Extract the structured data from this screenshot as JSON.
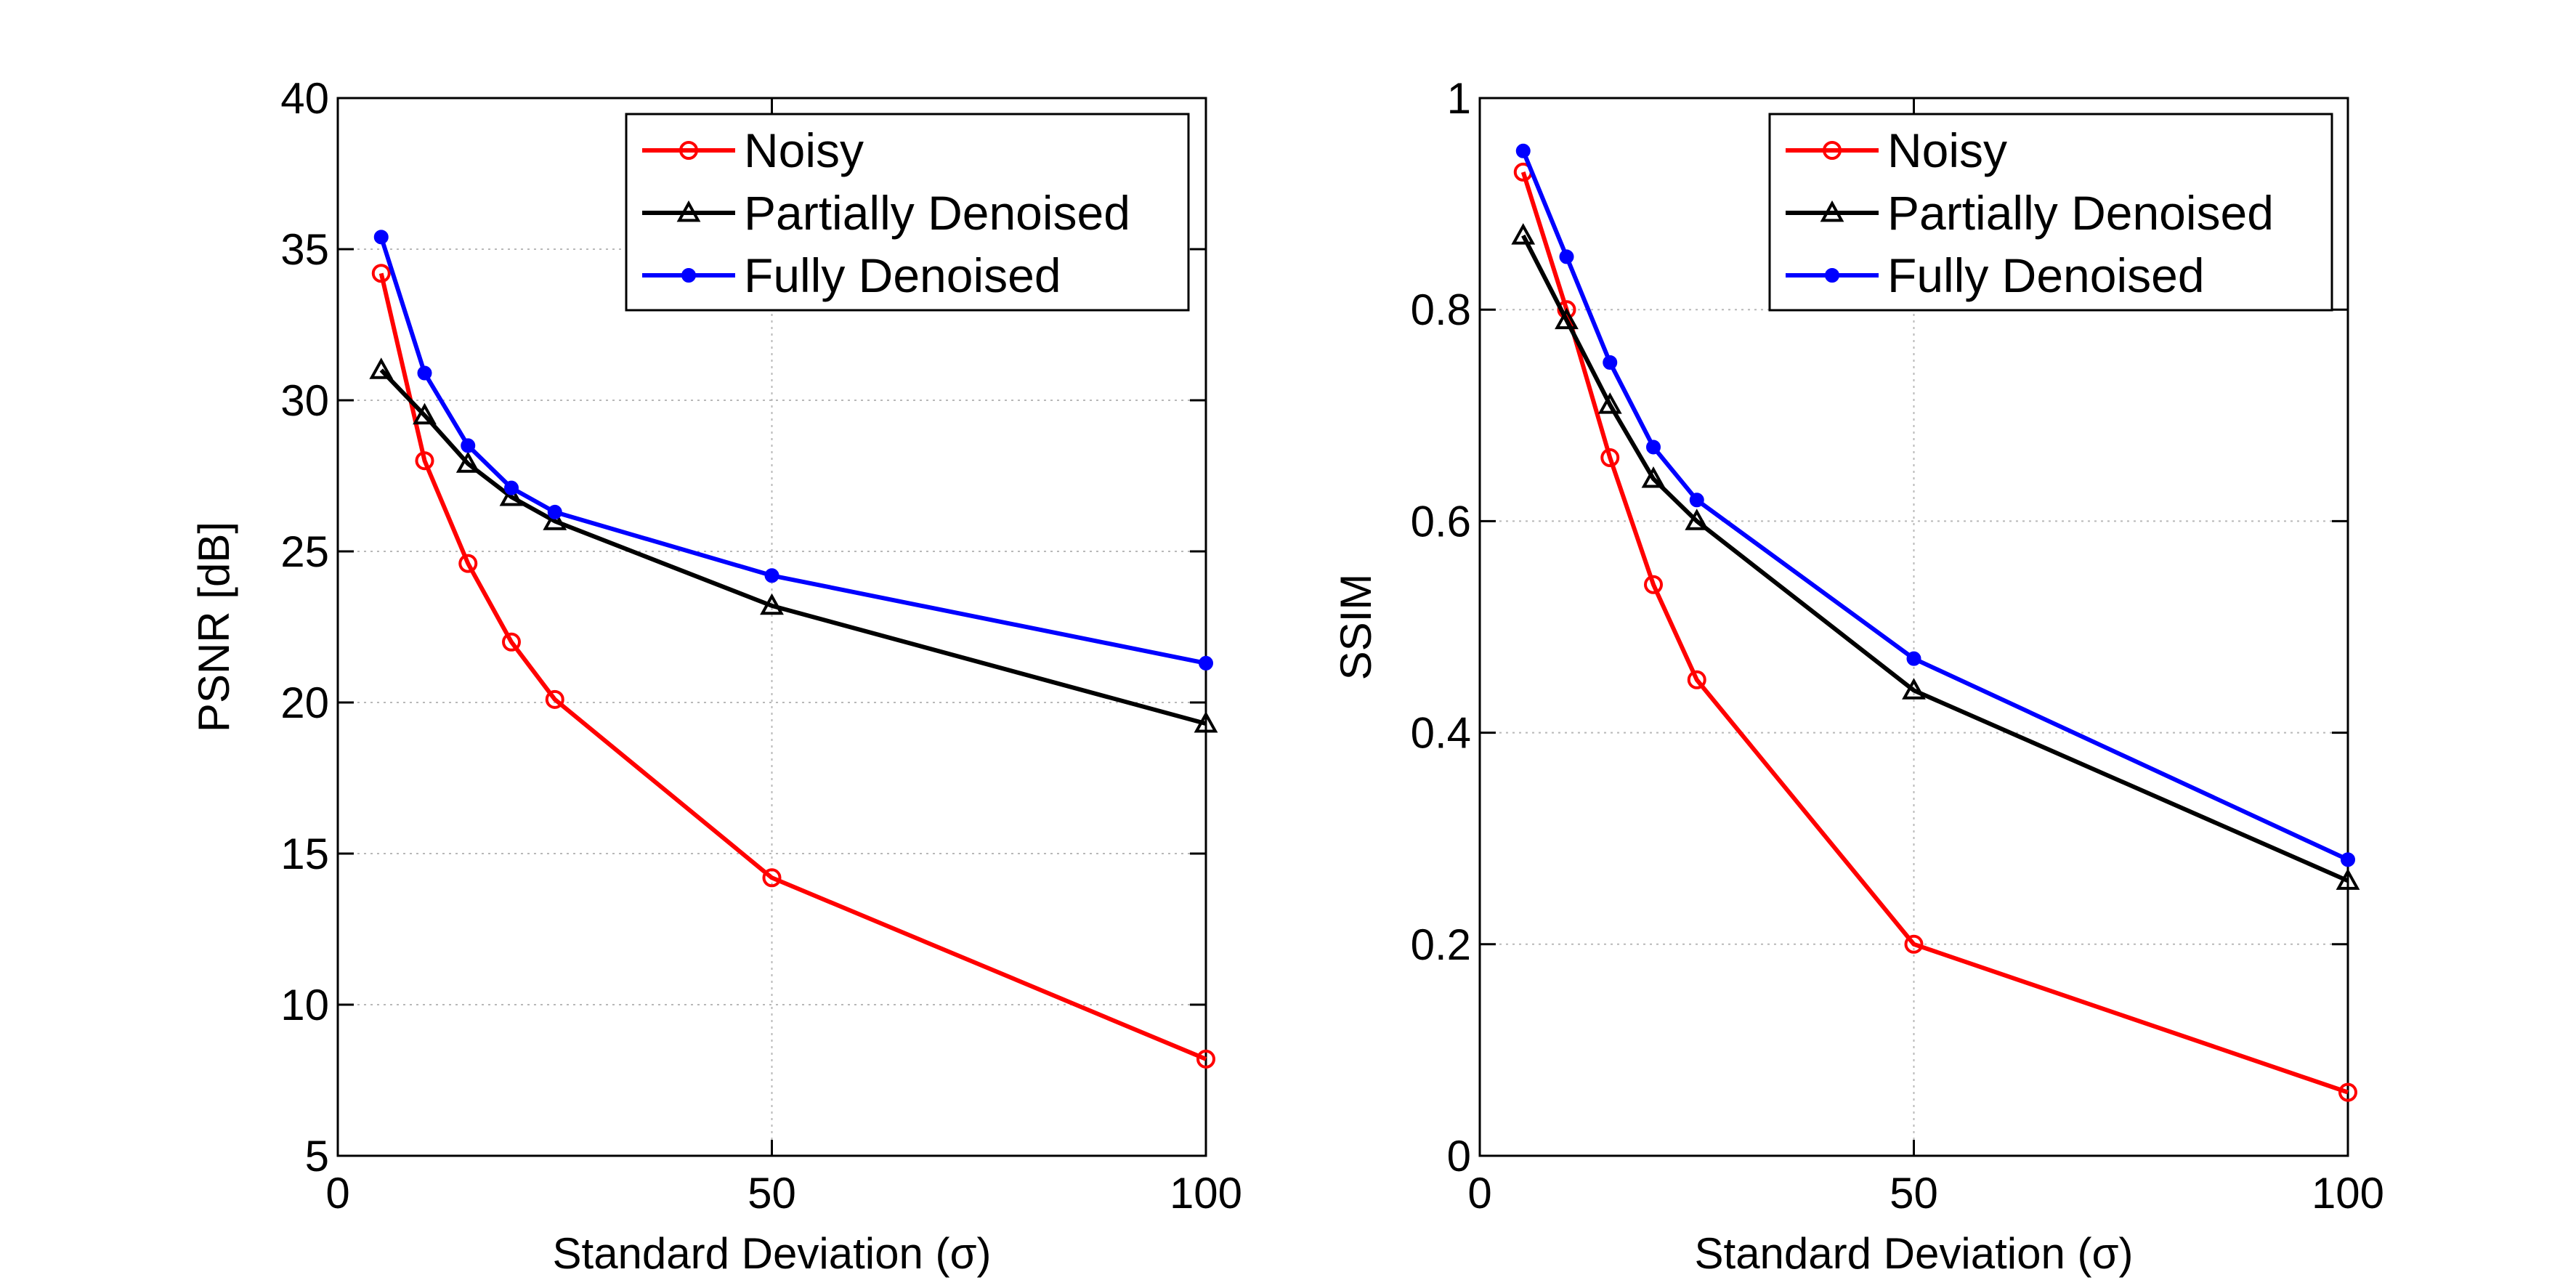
{
  "chart_data": [
    {
      "type": "line",
      "title": "",
      "xlabel": "Standard Deviation (σ)",
      "ylabel": "PSNR [dB]",
      "xlim": [
        0,
        100
      ],
      "ylim": [
        5,
        40
      ],
      "xticks": [
        0,
        50,
        100
      ],
      "xtick_labels": [
        "0",
        "50",
        "100"
      ],
      "yticks": [
        5,
        10,
        15,
        20,
        25,
        30,
        35,
        40
      ],
      "ytick_labels": [
        "5",
        "10",
        "15",
        "20",
        "25",
        "30",
        "35",
        "40"
      ],
      "grid": true,
      "legend_position": "top-right",
      "x": [
        5,
        10,
        15,
        20,
        25,
        50,
        100
      ],
      "series": [
        {
          "name": "Noisy",
          "color": "#ff0000",
          "marker": "circle",
          "values": [
            34.2,
            28.0,
            24.6,
            22.0,
            20.1,
            14.2,
            8.2
          ]
        },
        {
          "name": "Partially Denoised",
          "color": "#000000",
          "marker": "triangle",
          "values": [
            31.0,
            29.5,
            27.9,
            26.8,
            26.0,
            23.2,
            19.3
          ]
        },
        {
          "name": "Fully Denoised",
          "color": "#0000ff",
          "marker": "dot",
          "values": [
            35.4,
            30.9,
            28.5,
            27.1,
            26.3,
            24.2,
            21.3
          ]
        }
      ]
    },
    {
      "type": "line",
      "title": "",
      "xlabel": "Standard Deviation (σ)",
      "ylabel": "SSIM",
      "xlim": [
        0,
        100
      ],
      "ylim": [
        0,
        1
      ],
      "xticks": [
        0,
        50,
        100
      ],
      "xtick_labels": [
        "0",
        "50",
        "100"
      ],
      "yticks": [
        0,
        0.2,
        0.4,
        0.6,
        0.8,
        1
      ],
      "ytick_labels": [
        "0",
        "0.2",
        "0.4",
        "0.6",
        "0.8",
        "1"
      ],
      "grid": true,
      "legend_position": "top-right",
      "x": [
        5,
        10,
        15,
        20,
        25,
        50,
        100
      ],
      "series": [
        {
          "name": "Noisy",
          "color": "#ff0000",
          "marker": "circle",
          "values": [
            0.93,
            0.8,
            0.66,
            0.54,
            0.45,
            0.2,
            0.06
          ]
        },
        {
          "name": "Partially Denoised",
          "color": "#000000",
          "marker": "triangle",
          "values": [
            0.87,
            0.79,
            0.71,
            0.64,
            0.6,
            0.44,
            0.26
          ]
        },
        {
          "name": "Fully Denoised",
          "color": "#0000ff",
          "marker": "dot",
          "values": [
            0.95,
            0.85,
            0.75,
            0.67,
            0.62,
            0.47,
            0.28
          ]
        }
      ]
    }
  ]
}
